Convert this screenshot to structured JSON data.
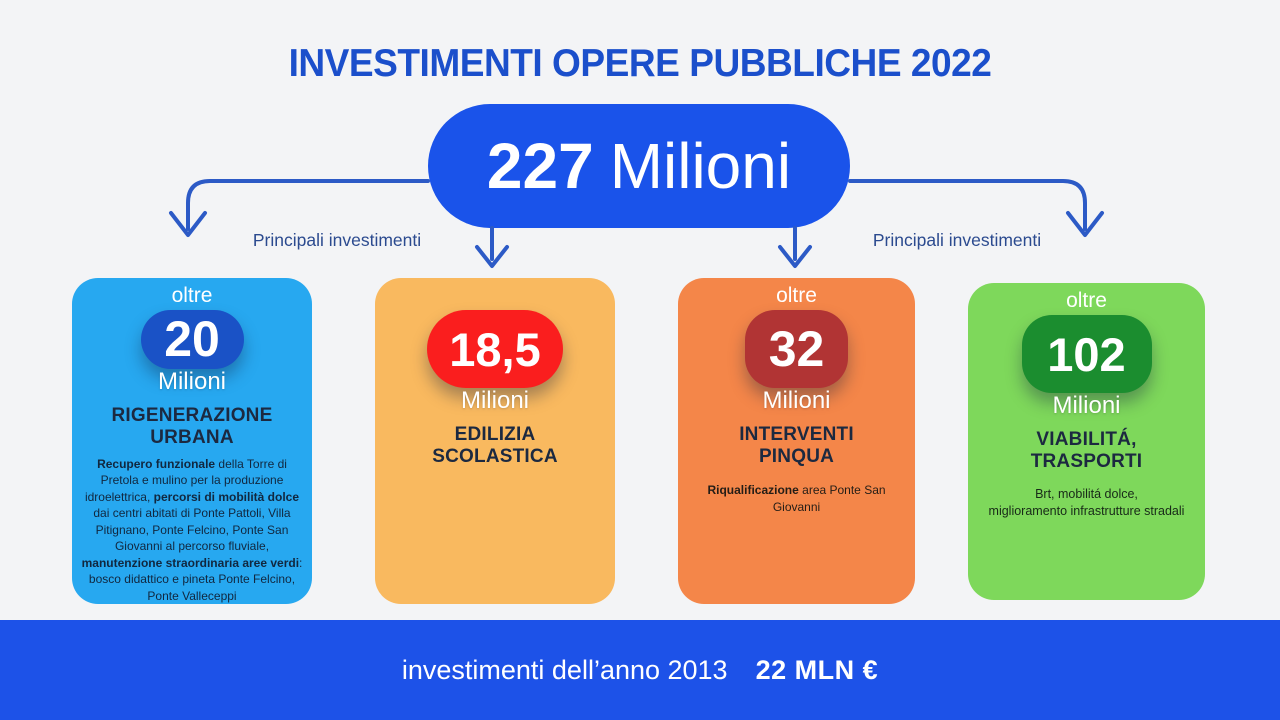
{
  "title": "INVESTIMENTI OPERE PUBBLICHE 2022",
  "total": {
    "number": "227",
    "unit": "Milioni"
  },
  "labels": {
    "left": "Principali investimenti",
    "right": "Principali investimenti"
  },
  "cards": [
    {
      "bg": "#27a8f0",
      "badge_bg": "#1a52c6",
      "qualifier": "oltre",
      "number": "20",
      "unit": "Milioni",
      "heading": [
        "RIGENERAZIONE",
        "URBANA"
      ],
      "body": [
        {
          "text": "Recupero funzionale",
          "bold": true
        },
        {
          "text": " della Torre di Pretola e mulino per la produzione idroelettrica, ",
          "bold": false
        },
        {
          "text": "percorsi di mobilità dolce",
          "bold": true
        },
        {
          "text": " dai centri abitati di Ponte Pattoli, Villa Pitignano, Ponte Felcino, Ponte San Giovanni al percorso fluviale, ",
          "bold": false
        },
        {
          "text": "manutenzione straordinaria aree verdi",
          "bold": true
        },
        {
          "text": ": bosco didattico e pineta Ponte Felcino, Ponte Valleceppi",
          "bold": false
        }
      ]
    },
    {
      "bg": "#f9b95f",
      "badge_bg": "#fa1e1e",
      "qualifier": "",
      "number": "18,5",
      "unit": "Milioni",
      "heading": [
        "EDILIZIA",
        "SCOLASTICA"
      ],
      "body": []
    },
    {
      "bg": "#f48649",
      "badge_bg": "#b13434",
      "qualifier": "oltre",
      "number": "32",
      "unit": "Milioni",
      "heading": [
        "INTERVENTI",
        "PINQUA"
      ],
      "body": [
        {
          "text": "Riqualificazione",
          "bold": true
        },
        {
          "text": " area Ponte San Giovanni",
          "bold": false
        }
      ]
    },
    {
      "bg": "#7ed85b",
      "badge_bg": "#1b8d2f",
      "qualifier": "oltre",
      "number": "102",
      "unit": "Milioni",
      "heading": [
        "VIABILITÁ,",
        "TRASPORTI"
      ],
      "body": [
        {
          "text": "Brt, mobilitá dolce,",
          "bold": false
        },
        {
          "br": true
        },
        {
          "text": "miglioramento infrastrutture stradali",
          "bold": false
        }
      ]
    }
  ],
  "footer": {
    "label": "investimenti dell’anno 2013",
    "amount": "22 MLN €"
  },
  "colors": {
    "background": "#f3f4f6",
    "title": "#1b4fcb",
    "total_pill": "#1a53ea",
    "arrow": "#2c5ac6",
    "label": "#2b4a8f",
    "footer_bar": "#1d52e8"
  }
}
